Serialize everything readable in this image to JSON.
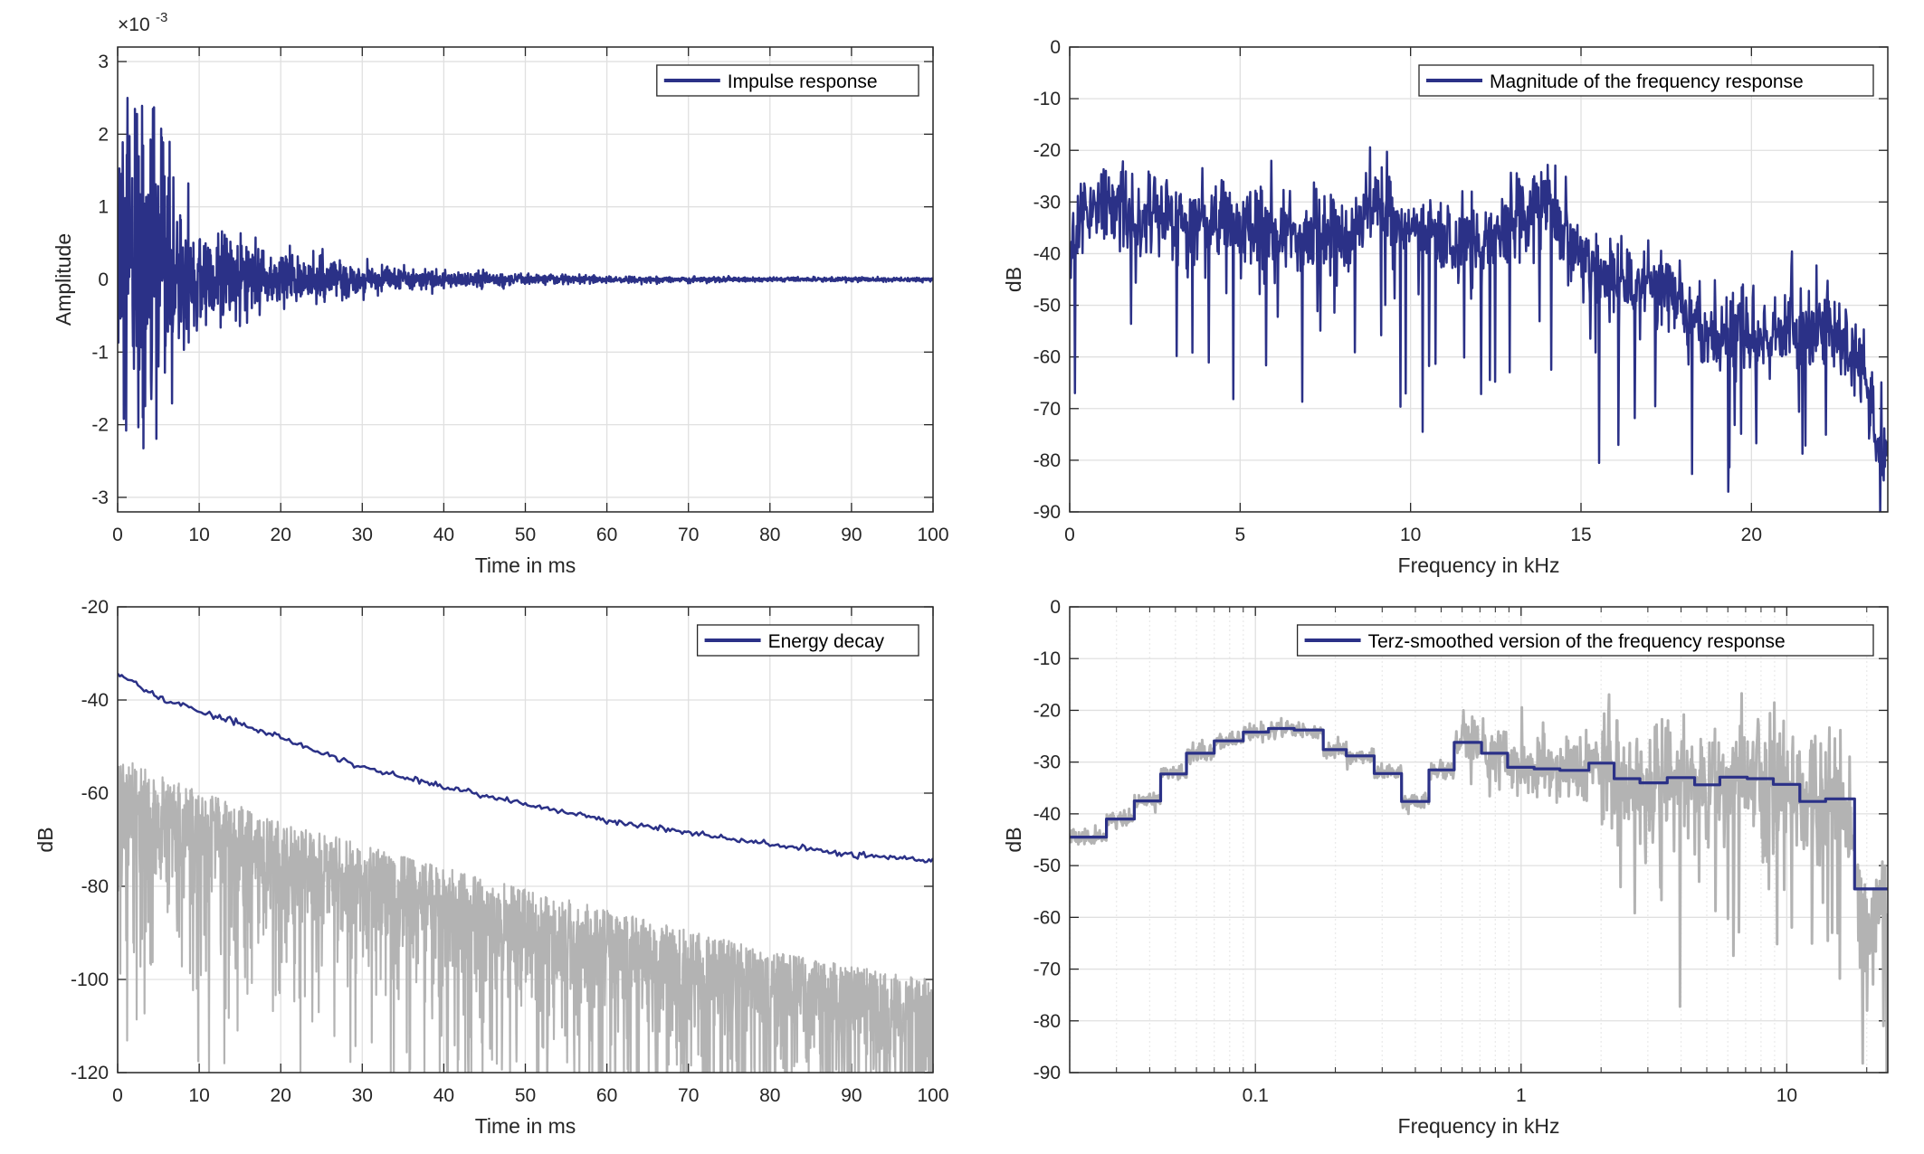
{
  "colors": {
    "series": "#2b3187",
    "grey": "#b3b3b3",
    "grid": "#e0e0e0",
    "axis": "#262626"
  },
  "chart_data": [
    {
      "type": "line",
      "title": "",
      "xlabel": "Time in ms",
      "ylabel": "Amplitude",
      "exponent_label": "×10",
      "exponent_power": "-3",
      "xlim": [
        0,
        100
      ],
      "ylim": [
        -3.2,
        3.2
      ],
      "xticks": [
        "0",
        "10",
        "20",
        "30",
        "40",
        "50",
        "60",
        "70",
        "80",
        "90",
        "100"
      ],
      "yticks": [
        "-3",
        "-2",
        "-1",
        "0",
        "1",
        "2",
        "3"
      ],
      "grid": true,
      "legend": {
        "position": "top-right",
        "entries": [
          "Impulse response"
        ]
      },
      "series": [
        {
          "name": "Impulse response",
          "kind": "noisy-decay",
          "envelope_t_ms": [
            0,
            2,
            5,
            8,
            10,
            15,
            20,
            30,
            40,
            50,
            60,
            80,
            100
          ],
          "envelope_amp_e-3": [
            2.9,
            2.8,
            2.3,
            1.1,
            0.85,
            0.55,
            0.4,
            0.22,
            0.13,
            0.08,
            0.05,
            0.035,
            0.03
          ]
        }
      ]
    },
    {
      "type": "line",
      "xlabel": "Frequency in kHz",
      "ylabel": "dB",
      "xlim": [
        0,
        24
      ],
      "ylim": [
        -90,
        0
      ],
      "xticks": [
        "0",
        "5",
        "10",
        "15",
        "20"
      ],
      "yticks": [
        "-90",
        "-80",
        "-70",
        "-60",
        "-50",
        "-40",
        "-30",
        "-20",
        "-10",
        "0"
      ],
      "grid": true,
      "legend": {
        "position": "top-right",
        "entries": [
          "Magnitude of the frequency response"
        ]
      },
      "series": [
        {
          "name": "Magnitude of the frequency response",
          "kind": "noisy",
          "f_khz": [
            0,
            0.5,
            2,
            4,
            6,
            8,
            9,
            10,
            12,
            14,
            15,
            16,
            17.5,
            18.5,
            20,
            22,
            23,
            24
          ],
          "mean_db": [
            -40,
            -30,
            -33,
            -33,
            -36,
            -36,
            -30,
            -36,
            -38,
            -31,
            -40,
            -46,
            -46,
            -55,
            -56,
            -54,
            -58,
            -80
          ]
        }
      ]
    },
    {
      "type": "line",
      "xlabel": "Time in ms",
      "ylabel": "dB",
      "xlim": [
        0,
        100
      ],
      "ylim": [
        -120,
        -20
      ],
      "xticks": [
        "0",
        "10",
        "20",
        "30",
        "40",
        "50",
        "60",
        "70",
        "80",
        "90",
        "100"
      ],
      "yticks": [
        "-120",
        "-100",
        "-80",
        "-60",
        "-40",
        "-20"
      ],
      "grid": true,
      "legend": {
        "position": "top-right",
        "entries": [
          "Energy decay"
        ]
      },
      "series": [
        {
          "name": "Energy decay",
          "t_ms": [
            0,
            2,
            5,
            10,
            15,
            20,
            30,
            40,
            50,
            60,
            70,
            80,
            90,
            100
          ],
          "db": [
            -34.5,
            -36,
            -39.5,
            -42.5,
            -45,
            -48,
            -54.5,
            -58.7,
            -62.3,
            -65.8,
            -68.5,
            -71,
            -73,
            -74.5
          ]
        },
        {
          "name": "Squared impulse response (dB)",
          "kind": "noisy-decay",
          "t_ms": [
            0,
            5,
            20,
            40,
            60,
            80,
            100
          ],
          "upper_db": [
            -52,
            -56,
            -66,
            -76,
            -85,
            -94,
            -100
          ]
        }
      ]
    },
    {
      "type": "line",
      "xscale": "log",
      "xlabel": "Frequency in kHz",
      "ylabel": "dB",
      "xlim": [
        0.02,
        24
      ],
      "ylim": [
        -90,
        0
      ],
      "xticks": [
        "0.1",
        "1",
        "10"
      ],
      "xtick_values": [
        0.1,
        1,
        10
      ],
      "yticks": [
        "-90",
        "-80",
        "-70",
        "-60",
        "-50",
        "-40",
        "-30",
        "-20",
        "-10",
        "0"
      ],
      "grid": true,
      "legend": {
        "position": "top-right",
        "entries": [
          "Terz-smoothed version of the frequency response"
        ]
      },
      "series": [
        {
          "name": "Terz-smoothed version of the frequency response",
          "kind": "step",
          "band_edges_khz": [
            0.02,
            0.0275,
            0.035,
            0.044,
            0.055,
            0.07,
            0.09,
            0.112,
            0.14,
            0.18,
            0.22,
            0.28,
            0.355,
            0.45,
            0.56,
            0.71,
            0.89,
            1.12,
            1.4,
            1.8,
            2.24,
            2.8,
            3.55,
            4.5,
            5.6,
            7.1,
            8.9,
            11.2,
            14,
            18,
            24
          ],
          "db": [
            -44.5,
            -41,
            -37.5,
            -32.3,
            -28.3,
            -25.9,
            -24.2,
            -23.5,
            -23.8,
            -27.6,
            -28.8,
            -32.2,
            -37.6,
            -31.5,
            -26.2,
            -28.3,
            -31,
            -31.3,
            -31.6,
            -30.2,
            -33.2,
            -34,
            -33,
            -34.4,
            -32.9,
            -33.2,
            -34.3,
            -37.6,
            -37.1,
            -54.5
          ]
        },
        {
          "name": "Unsmoothed frequency response",
          "kind": "noisy"
        }
      ]
    }
  ]
}
